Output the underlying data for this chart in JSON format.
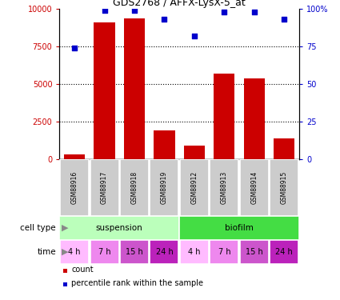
{
  "title": "GDS2768 / AFFX-LysX-5_at",
  "samples": [
    "GSM88916",
    "GSM88917",
    "GSM88918",
    "GSM88919",
    "GSM88912",
    "GSM88913",
    "GSM88914",
    "GSM88915"
  ],
  "counts": [
    300,
    9100,
    9400,
    1900,
    900,
    5700,
    5400,
    1400
  ],
  "percentiles": [
    74,
    99,
    99,
    93,
    82,
    98,
    98,
    93
  ],
  "ylim_left": [
    0,
    10000
  ],
  "ylim_right": [
    0,
    100
  ],
  "yticks_left": [
    0,
    2500,
    5000,
    7500,
    10000
  ],
  "yticks_right": [
    0,
    25,
    50,
    75,
    100
  ],
  "bar_color": "#cc0000",
  "scatter_color": "#0000cc",
  "cell_types": [
    {
      "label": "suspension",
      "start": 0,
      "end": 4,
      "color": "#bbffbb"
    },
    {
      "label": "biofilm",
      "start": 4,
      "end": 8,
      "color": "#44dd44"
    }
  ],
  "times": [
    "4 h",
    "7 h",
    "15 h",
    "24 h",
    "4 h",
    "7 h",
    "15 h",
    "24 h"
  ],
  "time_colors": [
    "#ffbbff",
    "#ee88ee",
    "#cc55cc",
    "#bb22bb",
    "#ffbbff",
    "#ee88ee",
    "#cc55cc",
    "#bb22bb"
  ],
  "label_count": "count",
  "label_percentile": "percentile rank within the sample",
  "cell_type_label": "cell type",
  "time_label": "time",
  "gsm_box_color": "#cccccc",
  "arrow_color": "#888888"
}
